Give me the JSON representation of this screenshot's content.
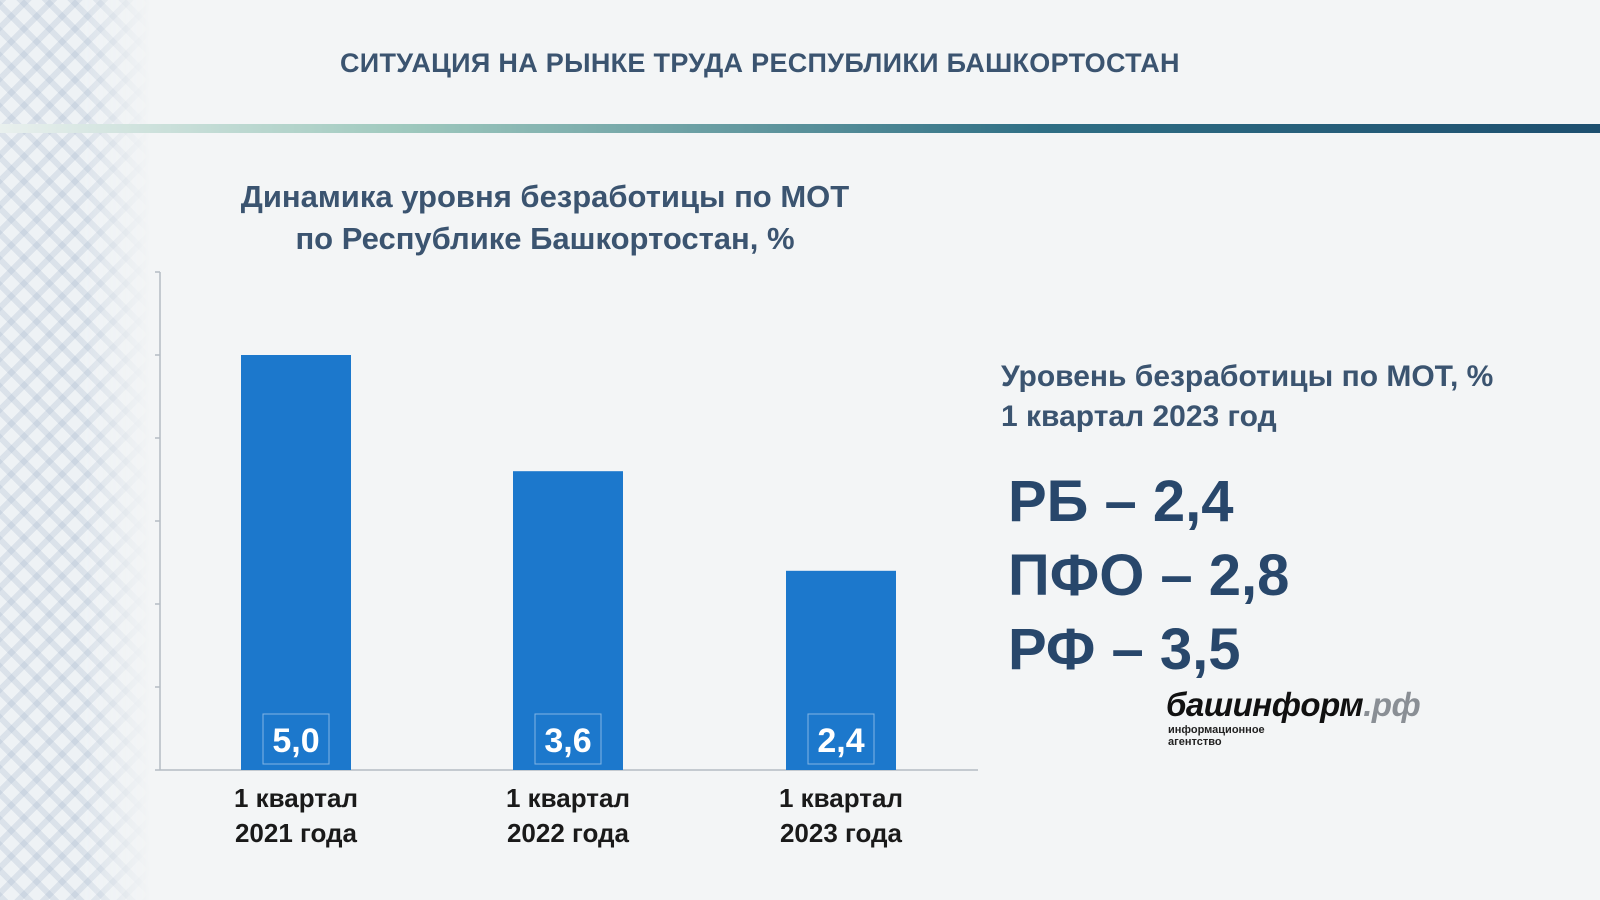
{
  "header": {
    "title": "СИТУАЦИЯ НА РЫНКЕ ТРУДА РЕСПУБЛИКИ БАШКОРТОСТАН"
  },
  "chart_data": {
    "type": "bar",
    "title_line1": "Динамика уровня безработицы по МОТ",
    "title_line2": "по Республике Башкортостан, %",
    "categories": [
      {
        "line1": "1 квартал",
        "line2": "2021 года"
      },
      {
        "line1": "1 квартал",
        "line2": "2022 года"
      },
      {
        "line1": "1 квартал",
        "line2": "2023 года"
      }
    ],
    "values": [
      5.0,
      3.6,
      2.4
    ],
    "value_labels": [
      "5,0",
      "3,6",
      "2,4"
    ],
    "ylim": [
      0,
      6
    ],
    "grid": false,
    "color": "#1c78cc"
  },
  "kpi": {
    "heading_line1": "Уровень безработицы по МОТ, %",
    "heading_line2": "1 квартал 2023 год",
    "items": [
      "РБ – 2,4",
      "ПФО – 2,8",
      "РФ – 3,5"
    ]
  },
  "logo": {
    "name": "башинформ",
    "suffix": ".рф",
    "sub_line1": "информационное",
    "sub_line2": "агентство"
  }
}
